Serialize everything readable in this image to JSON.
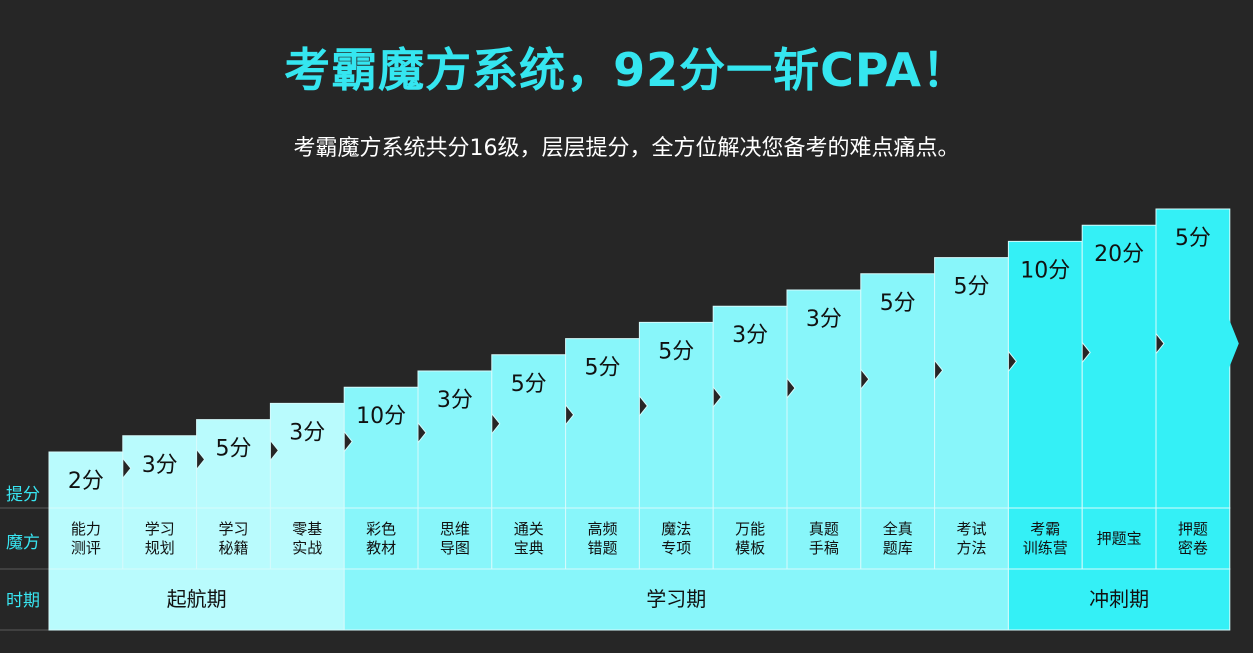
{
  "header": {
    "title": "考霸魔方系统，92分一斩CPA！",
    "subtitle": "考霸魔方系统共分16级，层层提分，全方位解决您备考的难点痛点。"
  },
  "row_labels": {
    "score": "提分",
    "cube": "魔方",
    "period": "时期"
  },
  "colors": {
    "phase1": "#b9fbfd",
    "phase2": "#88f6fa",
    "phase3": "#34f0f6",
    "background": "#262626",
    "accent": "#35e6f0"
  },
  "chart_data": {
    "type": "bar",
    "categories": [
      "能力\n测评",
      "学习\n规划",
      "学习\n秘籍",
      "零基\n实战",
      "彩色\n教材",
      "思维\n导图",
      "通关\n宝典",
      "高频\n错题",
      "魔法\n专项",
      "万能\n模板",
      "真题\n手稿",
      "全真\n题库",
      "考试\n方法",
      "考霸\n训练营",
      "押题宝",
      "押题\n密卷"
    ],
    "values": [
      2,
      3,
      5,
      3,
      10,
      3,
      5,
      5,
      5,
      3,
      3,
      5,
      5,
      10,
      20,
      5
    ],
    "labels": [
      "2分",
      "3分",
      "5分",
      "3分",
      "10分",
      "3分",
      "5分",
      "5分",
      "5分",
      "3分",
      "3分",
      "5分",
      "5分",
      "10分",
      "20分",
      "5分"
    ],
    "phases": [
      {
        "name": "起航期",
        "start": 0,
        "end": 3,
        "color": "phase1"
      },
      {
        "name": "学习期",
        "start": 4,
        "end": 12,
        "color": "phase2"
      },
      {
        "name": "冲刺期",
        "start": 13,
        "end": 15,
        "color": "phase3"
      }
    ]
  }
}
